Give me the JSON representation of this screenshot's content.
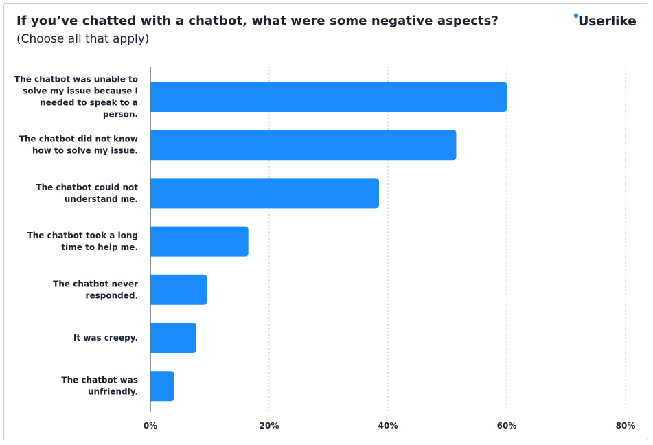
{
  "chart_data": {
    "type": "bar",
    "orientation": "horizontal",
    "title": "If you’ve chatted with a chatbot, what were some negative aspects?",
    "subtitle": "(Choose all that apply)",
    "categories": [
      "The chatbot was unable to solve my issue because I needed to speak to a person.",
      "The chatbot did not know how to solve my issue.",
      "The chatbot could not understand me.",
      "The chatbot took a long time to help me.",
      "The chatbot never responded.",
      "It was creepy.",
      "The chatbot was unfriendly."
    ],
    "category_lines": [
      [
        "The chatbot was unable to",
        "solve my issue because I",
        "needed to speak to a",
        "person."
      ],
      [
        "The chatbot did not know",
        "how to solve my issue."
      ],
      [
        "The chatbot could not",
        "understand me."
      ],
      [
        "The chatbot took a long",
        "time to help me."
      ],
      [
        "The chatbot never",
        "responded."
      ],
      [
        "It was creepy."
      ],
      [
        "The chatbot was",
        "unfriendly."
      ]
    ],
    "values": [
      60,
      51.5,
      38.5,
      16.5,
      9.5,
      7.7,
      4
    ],
    "x_ticks": [
      "0%",
      "20%",
      "40%",
      "60%",
      "80%"
    ],
    "xlim": [
      0,
      80
    ],
    "grid": "vertical dotted",
    "bar_color": "#1a8cff"
  },
  "brand": {
    "name": "Userlike"
  }
}
